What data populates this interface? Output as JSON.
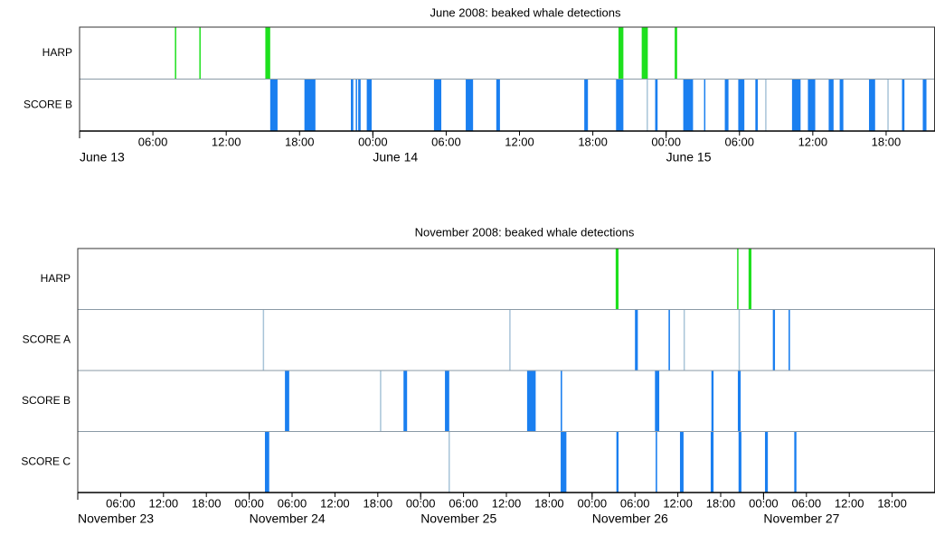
{
  "chart_data": [
    {
      "type": "event",
      "title": "June 2008: beaked whale detections",
      "xlim": [
        0,
        70
      ],
      "xticks": [
        {
          "value": 6,
          "label": "06:00"
        },
        {
          "value": 12,
          "label": "12:00"
        },
        {
          "value": 18,
          "label": "18:00"
        },
        {
          "value": 24,
          "label": "00:00"
        },
        {
          "value": 30,
          "label": "06:00"
        },
        {
          "value": 36,
          "label": "12:00"
        },
        {
          "value": 42,
          "label": "18:00"
        },
        {
          "value": 48,
          "label": "00:00"
        },
        {
          "value": 54,
          "label": "06:00"
        },
        {
          "value": 60,
          "label": "12:00"
        },
        {
          "value": 66,
          "label": "18:00"
        }
      ],
      "date_labels": [
        {
          "value": 0,
          "label": "June 13"
        },
        {
          "value": 24,
          "label": "June 14"
        },
        {
          "value": 48,
          "label": "June 15"
        }
      ],
      "weak_color": "#a8c4d8",
      "rows": [
        {
          "name": "HARP",
          "color": "#1ee01e",
          "events": [
            [
              7.8,
              7.9
            ],
            [
              9.8,
              9.9
            ],
            [
              15.2,
              15.6
            ],
            [
              44.1,
              44.5
            ],
            [
              46.0,
              46.5
            ],
            [
              48.7,
              48.9
            ]
          ],
          "weak_events": []
        },
        {
          "name": "SCORE B",
          "color": "#1a7ff0",
          "events": [
            [
              15.6,
              16.2
            ],
            [
              18.4,
              19.3
            ],
            [
              22.2,
              22.4
            ],
            [
              22.6,
              22.7
            ],
            [
              22.8,
              23.0
            ],
            [
              23.5,
              23.9
            ],
            [
              29.0,
              29.6
            ],
            [
              31.6,
              32.2
            ],
            [
              34.1,
              34.4
            ],
            [
              41.3,
              41.6
            ],
            [
              43.9,
              44.5
            ],
            [
              47.1,
              47.3
            ],
            [
              49.4,
              50.2
            ],
            [
              51.1,
              51.2
            ],
            [
              52.8,
              53.1
            ],
            [
              53.9,
              54.4
            ],
            [
              55.3,
              55.5
            ],
            [
              58.3,
              59.0
            ],
            [
              59.6,
              60.2
            ],
            [
              61.3,
              61.7
            ],
            [
              62.2,
              62.5
            ],
            [
              64.6,
              65.1
            ],
            [
              67.3,
              67.5
            ],
            [
              69.0,
              69.3
            ]
          ],
          "weak_events": [
            [
              46.4,
              46.5
            ],
            [
              56.1,
              56.2
            ],
            [
              66.1,
              66.2
            ]
          ]
        }
      ]
    },
    {
      "type": "event",
      "title": "November 2008: beaked whale detections",
      "xlim": [
        0,
        120
      ],
      "xticks": [
        {
          "value": 6,
          "label": "06:00"
        },
        {
          "value": 12,
          "label": "12:00"
        },
        {
          "value": 18,
          "label": "18:00"
        },
        {
          "value": 24,
          "label": "00:00"
        },
        {
          "value": 30,
          "label": "06:00"
        },
        {
          "value": 36,
          "label": "12:00"
        },
        {
          "value": 42,
          "label": "18:00"
        },
        {
          "value": 48,
          "label": "00:00"
        },
        {
          "value": 54,
          "label": "06:00"
        },
        {
          "value": 60,
          "label": "12:00"
        },
        {
          "value": 66,
          "label": "18:00"
        },
        {
          "value": 72,
          "label": "00:00"
        },
        {
          "value": 78,
          "label": "06:00"
        },
        {
          "value": 84,
          "label": "12:00"
        },
        {
          "value": 90,
          "label": "18:00"
        },
        {
          "value": 96,
          "label": "00:00"
        },
        {
          "value": 102,
          "label": "06:00"
        },
        {
          "value": 108,
          "label": "12:00"
        },
        {
          "value": 114,
          "label": "18:00"
        }
      ],
      "date_labels": [
        {
          "value": 0,
          "label": "November 23"
        },
        {
          "value": 24,
          "label": "November 24"
        },
        {
          "value": 48,
          "label": "November 25"
        },
        {
          "value": 72,
          "label": "November 26"
        },
        {
          "value": 96,
          "label": "November 27"
        }
      ],
      "weak_color": "#a8c4d8",
      "rows": [
        {
          "name": "HARP",
          "color": "#1ee01e",
          "events": [
            [
              75.3,
              75.7
            ],
            [
              92.3,
              92.4
            ],
            [
              93.9,
              94.3
            ]
          ],
          "weak_events": []
        },
        {
          "name": "SCORE A",
          "color": "#1a7ff0",
          "events": [
            [
              78.0,
              78.4
            ],
            [
              82.7,
              82.9
            ],
            [
              97.3,
              97.6
            ],
            [
              99.5,
              99.7
            ]
          ],
          "weak_events": [
            [
              25.9,
              26.0
            ],
            [
              60.4,
              60.5
            ],
            [
              84.8,
              84.9
            ],
            [
              92.5,
              92.6
            ]
          ]
        },
        {
          "name": "SCORE B",
          "color": "#1a7ff0",
          "events": [
            [
              29.0,
              29.6
            ],
            [
              45.6,
              46.1
            ],
            [
              51.4,
              52.0
            ],
            [
              62.9,
              64.1
            ],
            [
              67.6,
              67.8
            ],
            [
              80.8,
              81.4
            ],
            [
              88.7,
              89.0
            ],
            [
              92.4,
              92.8
            ]
          ],
          "weak_events": [
            [
              42.3,
              42.4
            ]
          ]
        },
        {
          "name": "SCORE C",
          "color": "#1a7ff0",
          "events": [
            [
              26.2,
              26.8
            ],
            [
              67.6,
              68.4
            ],
            [
              75.4,
              75.7
            ],
            [
              80.9,
              81.1
            ],
            [
              84.3,
              84.8
            ],
            [
              88.6,
              89.0
            ],
            [
              92.5,
              92.9
            ],
            [
              96.2,
              96.6
            ],
            [
              100.3,
              100.6
            ]
          ],
          "weak_events": [
            [
              51.9,
              52.0
            ]
          ]
        }
      ]
    }
  ]
}
